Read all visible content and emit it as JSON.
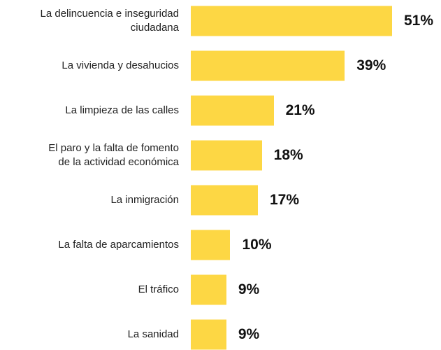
{
  "chart_data": {
    "type": "bar",
    "orientation": "horizontal",
    "color": "#fdd744",
    "categories": [
      "La delincuencia e inseguridad\nciudadana",
      "La vivienda y desahucios",
      "La limpieza de las calles",
      "El paro y la falta de fomento\nde la actividad económica",
      "La inmigración",
      "La falta de aparcamientos",
      "El tráfico",
      "La sanidad"
    ],
    "values": [
      51,
      39,
      21,
      18,
      17,
      10,
      9,
      9
    ],
    "value_labels": [
      "51%",
      "39%",
      "21%",
      "18%",
      "17%",
      "10%",
      "9%",
      "9%"
    ]
  }
}
